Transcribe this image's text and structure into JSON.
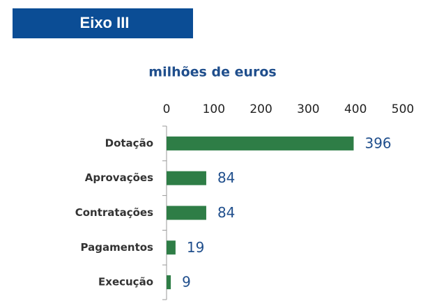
{
  "header": "Eixo III",
  "chart_data": {
    "type": "bar",
    "orientation": "horizontal",
    "title": "milhões de euros",
    "categories": [
      "Dotação",
      "Aprovações",
      "Contratações",
      "Pagamentos",
      "Execução"
    ],
    "values": [
      396,
      84,
      84,
      19,
      9
    ],
    "color": "#2e7d46",
    "xlim": [
      0,
      500
    ],
    "xticks": [
      0,
      100,
      200,
      300,
      400,
      500
    ],
    "grid": false
  }
}
